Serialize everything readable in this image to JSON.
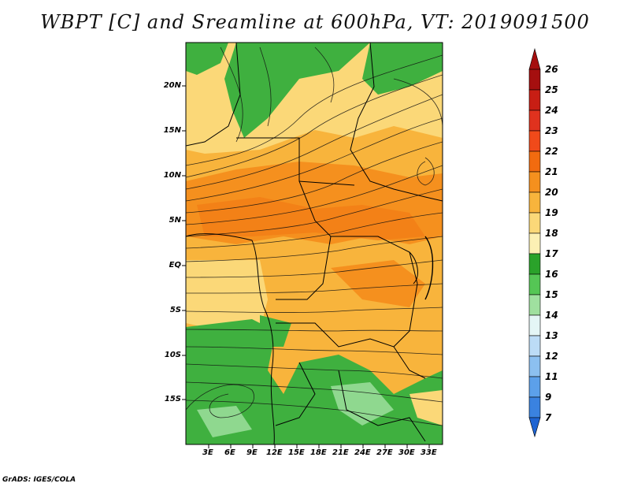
{
  "title": "WBPT [C] and Sreamline at 600hPa, VT: 2019091500",
  "credit": "GrADS: IGES/COLA",
  "map": {
    "lat_labels": [
      "20N",
      "15N",
      "10N",
      "5N",
      "EQ",
      "5S",
      "10S",
      "15S"
    ],
    "lon_labels": [
      "3E",
      "6E",
      "9E",
      "12E",
      "15E",
      "18E",
      "21E",
      "24E",
      "27E",
      "30E",
      "33E"
    ]
  },
  "colorbar": {
    "labels": [
      "26",
      "25",
      "24",
      "23",
      "22",
      "21",
      "20",
      "19",
      "18",
      "17",
      "16",
      "15",
      "14",
      "13",
      "12",
      "11",
      "9",
      "7"
    ],
    "colors": [
      "#a50f0f",
      "#c81e14",
      "#e0321e",
      "#f04a1a",
      "#f26b0f",
      "#f5901e",
      "#f8b43c",
      "#fbd878",
      "#fcf0b4",
      "#2aa22a",
      "#55c655",
      "#9fe09f",
      "#e4f6f6",
      "#bcdcf6",
      "#8cc0f0",
      "#5ca0ea",
      "#3a82e0",
      "#1e64d2"
    ]
  }
}
